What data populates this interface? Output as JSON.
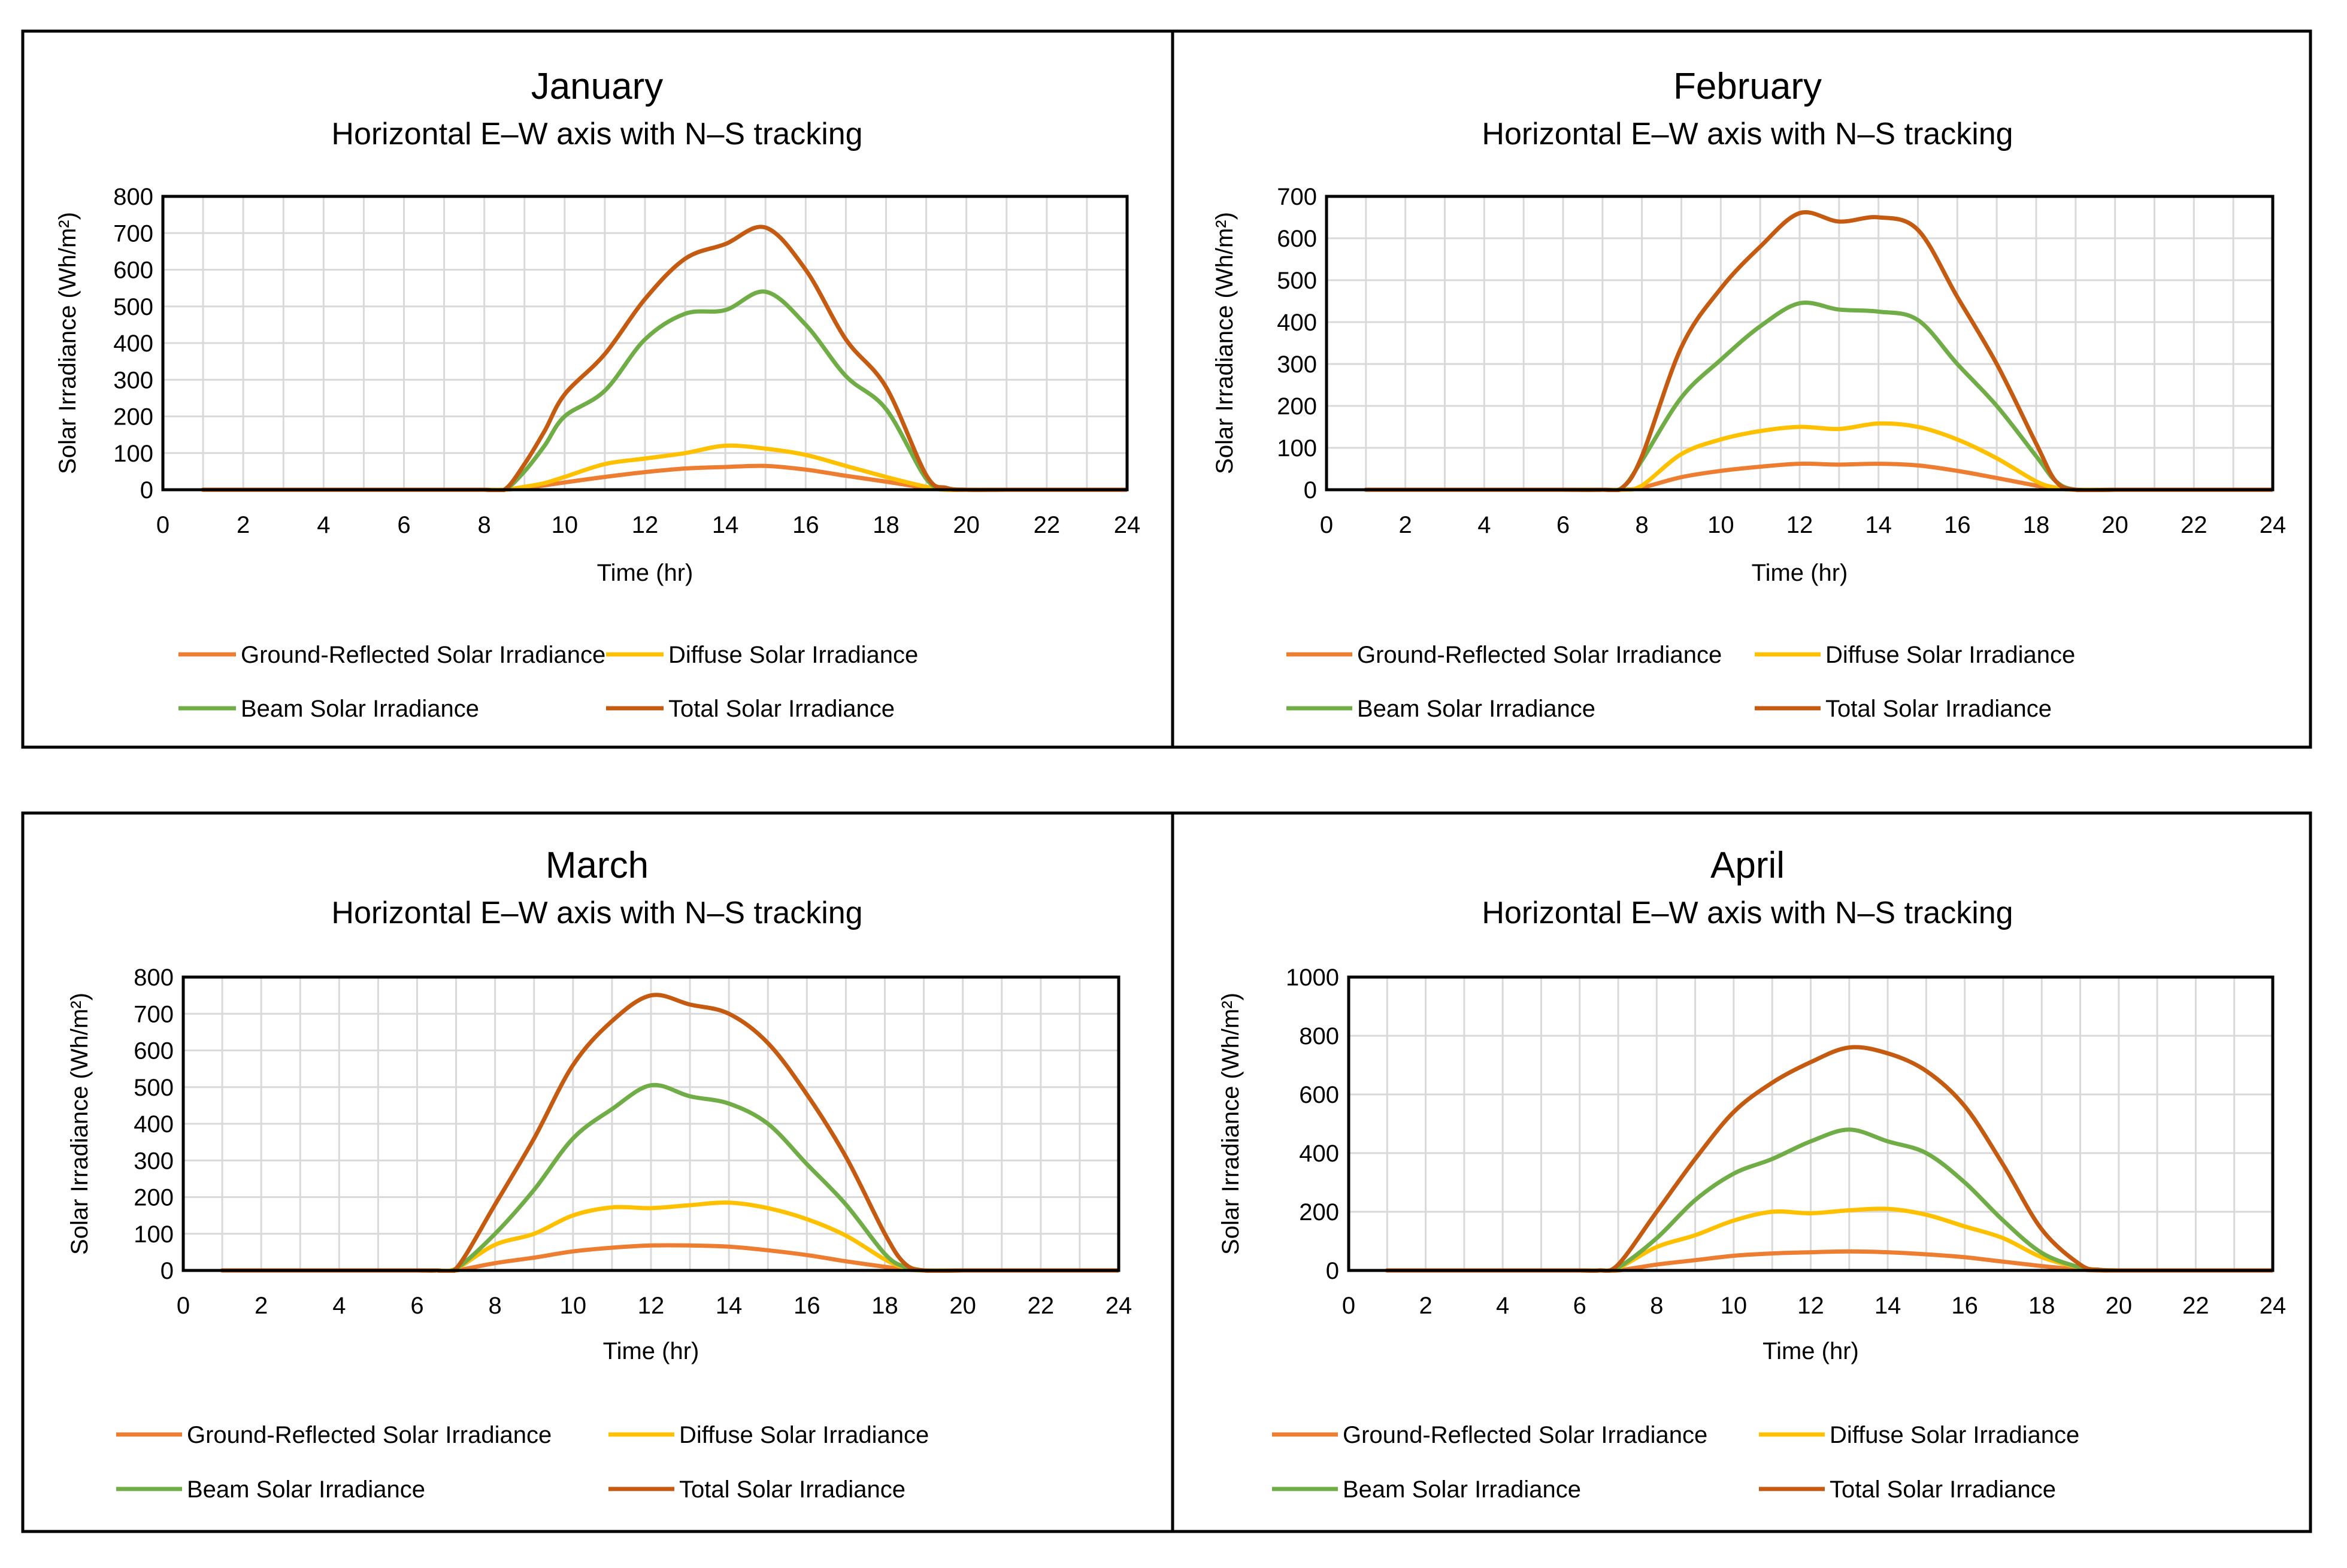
{
  "chart_data": [
    {
      "type": "line",
      "title": "January",
      "subtitle": "Horizontal E–W axis with N–S tracking",
      "xlabel": "Time (hr)",
      "ylabel": "Solar Irradiance (Wh/m²)",
      "xlim": [
        0,
        24
      ],
      "ylim": [
        0,
        800
      ],
      "xticks": [
        0,
        2,
        4,
        6,
        8,
        10,
        12,
        14,
        16,
        18,
        20,
        22,
        24
      ],
      "yticks": [
        0,
        100,
        200,
        300,
        400,
        500,
        600,
        700,
        800
      ],
      "legend_position": "bottom",
      "x": [
        1,
        2,
        3,
        4,
        5,
        6,
        7,
        8,
        8.5,
        9,
        9.5,
        10,
        11,
        12,
        13,
        14,
        15,
        16,
        17,
        18,
        19,
        19.5,
        20,
        21,
        22,
        23,
        24
      ],
      "series": [
        {
          "name": "Ground-Reflected Solar Irradiance",
          "color": "#ed7d31",
          "values": [
            0,
            0,
            0,
            0,
            0,
            0,
            0,
            0,
            0,
            5,
            12,
            20,
            35,
            48,
            58,
            62,
            65,
            55,
            38,
            22,
            5,
            0,
            0,
            0,
            0,
            0,
            0
          ]
        },
        {
          "name": "Diffuse Solar Irradiance",
          "color": "#ffc000",
          "values": [
            0,
            0,
            0,
            0,
            0,
            0,
            0,
            0,
            0,
            8,
            18,
            35,
            70,
            85,
            100,
            120,
            112,
            95,
            65,
            35,
            8,
            0,
            0,
            0,
            0,
            0,
            0
          ]
        },
        {
          "name": "Beam Solar Irradiance",
          "color": "#70ad47",
          "values": [
            0,
            0,
            0,
            0,
            0,
            0,
            0,
            0,
            0,
            50,
            120,
            200,
            270,
            410,
            480,
            490,
            540,
            450,
            310,
            220,
            30,
            5,
            0,
            0,
            0,
            0,
            0
          ]
        },
        {
          "name": "Total Solar Irradiance",
          "color": "#c55a11",
          "values": [
            0,
            0,
            0,
            0,
            0,
            0,
            0,
            0,
            0,
            70,
            160,
            260,
            370,
            520,
            630,
            670,
            715,
            600,
            410,
            280,
            40,
            5,
            0,
            0,
            0,
            0,
            0
          ]
        }
      ]
    },
    {
      "type": "line",
      "title": "February",
      "subtitle": "Horizontal E–W axis with N–S tracking",
      "xlabel": "Time (hr)",
      "ylabel": "Solar Irradiance (Wh/m²)",
      "xlim": [
        0,
        24
      ],
      "ylim": [
        0,
        700
      ],
      "xticks": [
        0,
        2,
        4,
        6,
        8,
        10,
        12,
        14,
        16,
        18,
        20,
        22,
        24
      ],
      "yticks": [
        0,
        100,
        200,
        300,
        400,
        500,
        600,
        700
      ],
      "legend_position": "bottom",
      "x": [
        1,
        2,
        3,
        4,
        5,
        6,
        7,
        7.5,
        8,
        9,
        10,
        11,
        12,
        13,
        14,
        15,
        16,
        17,
        18,
        18.5,
        19,
        20,
        21,
        22,
        23,
        24
      ],
      "series": [
        {
          "name": "Ground-Reflected Solar Irradiance",
          "color": "#ed7d31",
          "values": [
            0,
            0,
            0,
            0,
            0,
            0,
            0,
            0,
            5,
            30,
            45,
            55,
            62,
            60,
            62,
            58,
            45,
            28,
            10,
            3,
            0,
            0,
            0,
            0,
            0,
            0
          ]
        },
        {
          "name": "Diffuse Solar Irradiance",
          "color": "#ffc000",
          "values": [
            0,
            0,
            0,
            0,
            0,
            0,
            0,
            0,
            10,
            85,
            120,
            140,
            150,
            145,
            158,
            150,
            120,
            75,
            20,
            5,
            0,
            0,
            0,
            0,
            0,
            0
          ]
        },
        {
          "name": "Beam Solar Irradiance",
          "color": "#70ad47",
          "values": [
            0,
            0,
            0,
            0,
            0,
            0,
            0,
            5,
            70,
            220,
            310,
            390,
            445,
            430,
            425,
            405,
            300,
            200,
            80,
            20,
            0,
            0,
            0,
            0,
            0,
            0
          ]
        },
        {
          "name": "Total Solar Irradiance",
          "color": "#c55a11",
          "values": [
            0,
            0,
            0,
            0,
            0,
            0,
            0,
            5,
            80,
            340,
            480,
            580,
            660,
            640,
            650,
            620,
            460,
            300,
            110,
            20,
            0,
            0,
            0,
            0,
            0,
            0
          ]
        }
      ]
    },
    {
      "type": "line",
      "title": "March",
      "subtitle": "Horizontal E–W axis with N–S tracking",
      "xlabel": "Time (hr)",
      "ylabel": "Solar Irradiance (Wh/m²)",
      "xlim": [
        0,
        24
      ],
      "ylim": [
        0,
        800
      ],
      "xticks": [
        0,
        2,
        4,
        6,
        8,
        10,
        12,
        14,
        16,
        18,
        20,
        22,
        24
      ],
      "yticks": [
        0,
        100,
        200,
        300,
        400,
        500,
        600,
        700,
        800
      ],
      "legend_position": "bottom",
      "x": [
        1,
        2,
        3,
        4,
        5,
        6,
        6.5,
        7,
        8,
        9,
        10,
        11,
        12,
        13,
        14,
        15,
        16,
        17,
        18,
        18.5,
        19,
        20,
        21,
        22,
        23,
        24
      ],
      "series": [
        {
          "name": "Ground-Reflected Solar Irradiance",
          "color": "#ed7d31",
          "values": [
            0,
            0,
            0,
            0,
            0,
            0,
            0,
            0,
            20,
            35,
            52,
            62,
            68,
            68,
            65,
            55,
            42,
            25,
            10,
            3,
            0,
            0,
            0,
            0,
            0,
            0
          ]
        },
        {
          "name": "Diffuse Solar Irradiance",
          "color": "#ffc000",
          "values": [
            0,
            0,
            0,
            0,
            0,
            0,
            0,
            5,
            70,
            100,
            150,
            172,
            170,
            178,
            185,
            170,
            140,
            95,
            30,
            8,
            0,
            0,
            0,
            0,
            0,
            0
          ]
        },
        {
          "name": "Beam Solar Irradiance",
          "color": "#70ad47",
          "values": [
            0,
            0,
            0,
            0,
            0,
            0,
            0,
            5,
            100,
            220,
            360,
            440,
            505,
            475,
            455,
            400,
            290,
            180,
            45,
            10,
            0,
            0,
            0,
            0,
            0,
            0
          ]
        },
        {
          "name": "Total Solar Irradiance",
          "color": "#c55a11",
          "values": [
            0,
            0,
            0,
            0,
            0,
            0,
            0,
            5,
            180,
            360,
            560,
            680,
            750,
            725,
            700,
            620,
            480,
            310,
            100,
            20,
            0,
            0,
            0,
            0,
            0,
            0
          ]
        }
      ]
    },
    {
      "type": "line",
      "title": "April",
      "subtitle": "Horizontal E–W axis with N–S tracking",
      "xlabel": "Time (hr)",
      "ylabel": "Solar Irradiance (Wh/m²)",
      "xlim": [
        0,
        24
      ],
      "ylim": [
        0,
        1000
      ],
      "xticks": [
        0,
        2,
        4,
        6,
        8,
        10,
        12,
        14,
        16,
        18,
        20,
        22,
        24
      ],
      "yticks": [
        0,
        200,
        400,
        600,
        800,
        1000
      ],
      "legend_position": "bottom",
      "x": [
        1,
        2,
        3,
        4,
        5,
        6,
        6.5,
        7,
        8,
        9,
        10,
        11,
        12,
        13,
        14,
        15,
        16,
        17,
        18,
        19,
        19.5,
        20,
        21,
        22,
        23,
        24
      ],
      "series": [
        {
          "name": "Ground-Reflected Solar Irradiance",
          "color": "#ed7d31",
          "values": [
            0,
            0,
            0,
            0,
            0,
            0,
            0,
            0,
            20,
            35,
            50,
            58,
            62,
            65,
            62,
            55,
            45,
            30,
            15,
            3,
            0,
            0,
            0,
            0,
            0,
            0
          ]
        },
        {
          "name": "Diffuse Solar Irradiance",
          "color": "#ffc000",
          "values": [
            0,
            0,
            0,
            0,
            0,
            0,
            0,
            8,
            80,
            120,
            170,
            200,
            195,
            205,
            210,
            190,
            150,
            110,
            45,
            10,
            2,
            0,
            0,
            0,
            0,
            0
          ]
        },
        {
          "name": "Beam Solar Irradiance",
          "color": "#70ad47",
          "values": [
            0,
            0,
            0,
            0,
            0,
            0,
            0,
            10,
            110,
            240,
            330,
            380,
            440,
            480,
            440,
            400,
            300,
            170,
            60,
            10,
            2,
            0,
            0,
            0,
            0,
            0
          ]
        },
        {
          "name": "Total Solar Irradiance",
          "color": "#c55a11",
          "values": [
            0,
            0,
            0,
            0,
            0,
            0,
            0,
            20,
            200,
            380,
            540,
            640,
            710,
            760,
            740,
            680,
            560,
            360,
            140,
            20,
            2,
            0,
            0,
            0,
            0,
            0
          ]
        }
      ]
    }
  ]
}
